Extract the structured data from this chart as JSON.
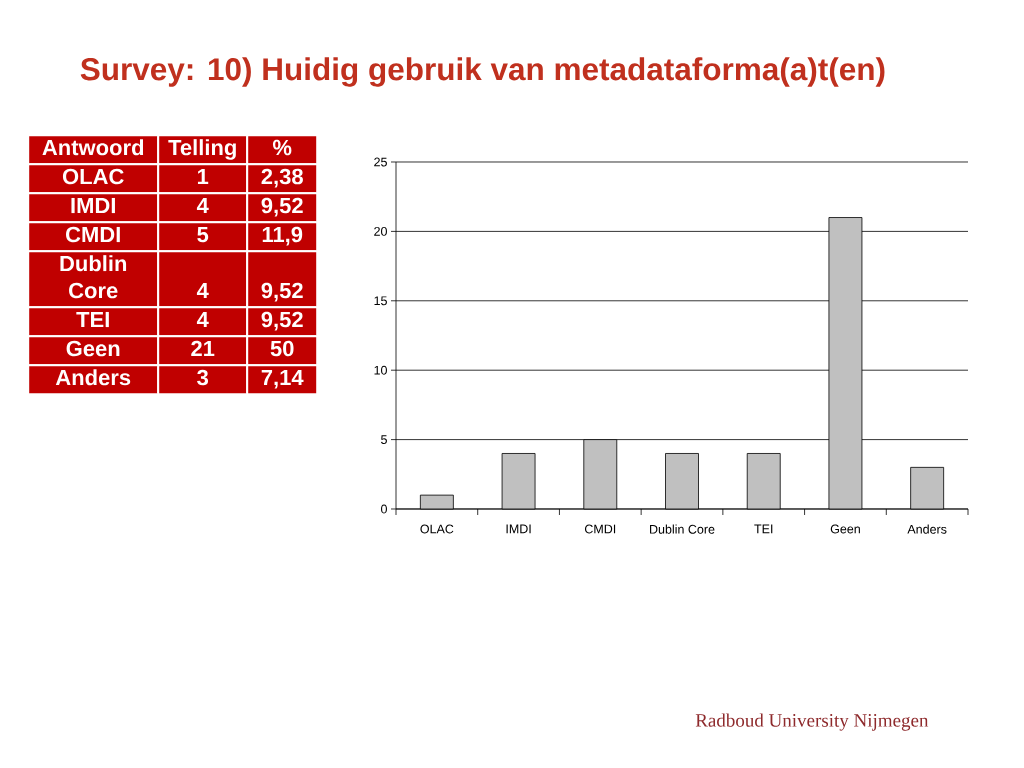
{
  "chart_data": [
    {
      "type": "other",
      "xlabel": "Antwoord",
      "categories": [
        "OLAC",
        "IMDI",
        "CMDI",
        "Dublin Core",
        "TEI",
        "Geen",
        "Anders"
      ],
      "color": "#c00000",
      "data_labels": true,
      "series": [
        {
          "name": "Telling",
          "values": [
            1,
            4,
            5,
            4,
            4,
            21,
            3
          ]
        },
        {
          "name": "%",
          "values": [
            2.38,
            9.52,
            11.9,
            9.52,
            9.52,
            50,
            7.14
          ],
          "value_labels": [
            "2,38",
            "9,52",
            "11,9",
            "9,52",
            "9,52",
            "50",
            "7,14"
          ]
        }
      ]
    },
    {
      "type": "bar",
      "title": "Survey: 10) Huidig gebruik van metadataforma(a)t(en)",
      "categories": [
        "OLAC",
        "IMDI",
        "CMDI",
        "Dublin Core",
        "TEI",
        "Geen",
        "Anders"
      ],
      "values": [
        1,
        4,
        5,
        4,
        4,
        21,
        3
      ],
      "color": "#c0c0c0",
      "ylim": [
        0,
        25
      ],
      "yticks": [
        0,
        5,
        10,
        15,
        20,
        25
      ],
      "grid": "y",
      "annotations": [
        "Radboud University Nijmegen"
      ]
    }
  ]
}
